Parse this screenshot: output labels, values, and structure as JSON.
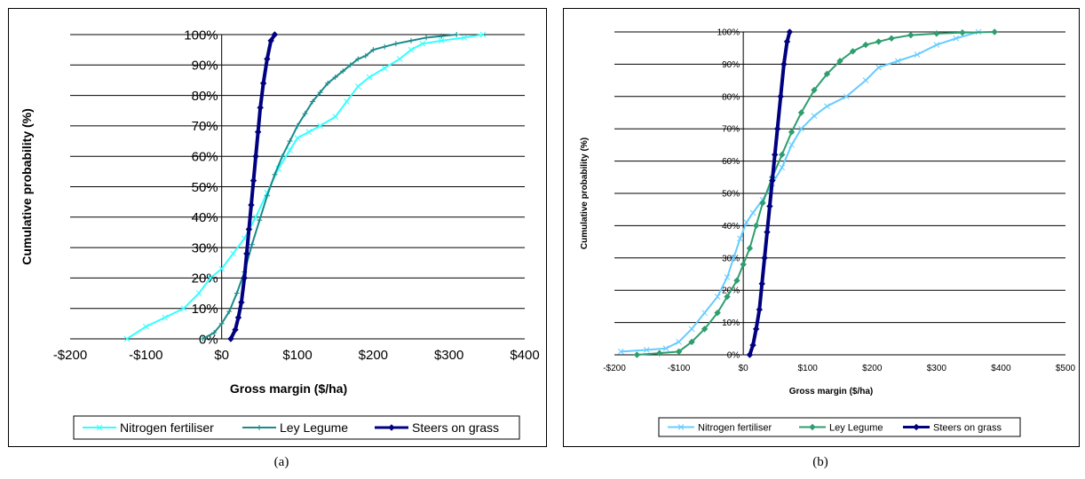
{
  "captions": [
    "(a)",
    "(b)"
  ],
  "colors": {
    "nitrogen_a": "#33ffff",
    "ley_a": "#1a8a8a",
    "steers": "#000080",
    "nitrogen_b": "#66ccff",
    "ley_b": "#2e9e6e"
  },
  "chart_data": [
    {
      "type": "line",
      "panel": "a",
      "xlabel": "Gross margin ($/ha)",
      "ylabel": "Cumulative probability (%)",
      "xlim": [
        -200,
        400
      ],
      "ylim": [
        0,
        100
      ],
      "x_ticks": [
        -200,
        -100,
        0,
        100,
        200,
        300,
        400
      ],
      "x_tick_labels": [
        "-$200",
        "-$100",
        "$0",
        "$100",
        "$200",
        "$300",
        "$400"
      ],
      "y_ticks": [
        0,
        10,
        20,
        30,
        40,
        50,
        60,
        70,
        80,
        90,
        100
      ],
      "y_tick_labels": [
        "0%",
        "10%",
        "20%",
        "30%",
        "40%",
        "50%",
        "60%",
        "70%",
        "80%",
        "90%",
        "100%"
      ],
      "grid": "horizontal",
      "legend_position": "bottom",
      "series": [
        {
          "name": "Nitrogen fertiliser",
          "marker": "x",
          "x": [
            -125,
            -100,
            -75,
            -50,
            -30,
            -15,
            0,
            15,
            30,
            45,
            60,
            75,
            90,
            100,
            115,
            130,
            150,
            165,
            180,
            195,
            215,
            235,
            250,
            265,
            290,
            320,
            345
          ],
          "y": [
            0,
            4,
            7,
            10,
            15,
            20,
            23,
            28,
            33,
            40,
            48,
            56,
            62,
            66,
            68,
            70,
            73,
            78,
            83,
            86,
            89,
            92,
            95,
            97,
            98,
            99,
            100
          ]
        },
        {
          "name": "Ley Legume",
          "marker": "+",
          "x": [
            -25,
            -10,
            0,
            10,
            20,
            30,
            40,
            50,
            60,
            70,
            80,
            90,
            100,
            110,
            120,
            130,
            140,
            150,
            160,
            170,
            180,
            190,
            200,
            215,
            230,
            250,
            270,
            290,
            310
          ],
          "y": [
            0,
            2,
            5,
            9,
            15,
            22,
            31,
            39,
            47,
            54,
            60,
            65,
            70,
            74,
            78,
            81,
            84,
            86,
            88,
            90,
            92,
            93,
            95,
            96,
            97,
            98,
            99,
            99.5,
            100
          ]
        },
        {
          "name": "Steers on grass",
          "marker": "diamond",
          "x": [
            12,
            18,
            22,
            26,
            30,
            33,
            36,
            39,
            42,
            45,
            48,
            51,
            55,
            60,
            65,
            70
          ],
          "y": [
            0,
            3,
            7,
            12,
            20,
            28,
            36,
            44,
            52,
            60,
            68,
            76,
            84,
            92,
            98,
            100
          ]
        }
      ]
    },
    {
      "type": "line",
      "panel": "b",
      "xlabel": "Gross margin ($/ha)",
      "ylabel": "Cumulative probability (%)",
      "xlim": [
        -200,
        500
      ],
      "ylim": [
        0,
        100
      ],
      "x_ticks": [
        -200,
        -100,
        0,
        100,
        200,
        300,
        400,
        500
      ],
      "x_tick_labels": [
        "-$200",
        "-$100",
        "$0",
        "$100",
        "$200",
        "$300",
        "$400",
        "$500"
      ],
      "y_ticks": [
        0,
        10,
        20,
        30,
        40,
        50,
        60,
        70,
        80,
        90,
        100
      ],
      "y_tick_labels": [
        "0%",
        "10%",
        "20%",
        "30%",
        "40%",
        "50%",
        "60%",
        "70%",
        "80%",
        "90%",
        "100%"
      ],
      "grid": "horizontal",
      "legend_position": "bottom",
      "series": [
        {
          "name": "Nitrogen fertiliser",
          "marker": "x",
          "x": [
            -190,
            -150,
            -120,
            -100,
            -80,
            -60,
            -40,
            -25,
            -15,
            -5,
            5,
            15,
            30,
            45,
            60,
            75,
            90,
            110,
            130,
            160,
            190,
            210,
            240,
            270,
            300,
            330,
            365
          ],
          "y": [
            1,
            1.5,
            2,
            4,
            8,
            13,
            18,
            24,
            30,
            36,
            41,
            44,
            48,
            53,
            58,
            65,
            70,
            74,
            77,
            80,
            85,
            89,
            91,
            93,
            96,
            98,
            100
          ]
        },
        {
          "name": "Ley Legume",
          "marker": "diamond",
          "x": [
            -165,
            -130,
            -100,
            -80,
            -60,
            -40,
            -25,
            -10,
            0,
            10,
            20,
            30,
            45,
            60,
            75,
            90,
            110,
            130,
            150,
            170,
            190,
            210,
            230,
            260,
            300,
            340,
            390
          ],
          "y": [
            0,
            0.5,
            1,
            4,
            8,
            13,
            18,
            23,
            28,
            33,
            40,
            47,
            55,
            62,
            69,
            75,
            82,
            87,
            91,
            94,
            96,
            97,
            98,
            99,
            99.5,
            99.8,
            100
          ]
        },
        {
          "name": "Steers on grass",
          "marker": "diamond",
          "x": [
            10,
            15,
            20,
            25,
            29,
            33,
            37,
            41,
            45,
            49,
            53,
            58,
            63,
            68,
            72
          ],
          "y": [
            0,
            3,
            8,
            14,
            22,
            30,
            38,
            46,
            54,
            62,
            70,
            80,
            90,
            97,
            100
          ]
        }
      ]
    }
  ]
}
